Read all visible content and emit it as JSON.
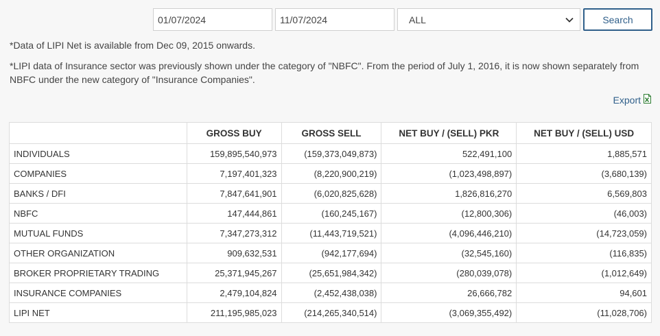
{
  "filters": {
    "from_date": "01/07/2024",
    "to_date": "11/07/2024",
    "sector": "ALL",
    "search_label": "Search"
  },
  "notes": {
    "line1": "*Data of LIPI Net is available from Dec 09, 2015 onwards.",
    "line2": "*LIPI data of Insurance sector was previously shown under the category of \"NBFC\". From the period of July 1, 2016, it is now shown separately from NBFC under the new category of \"Insurance Companies\"."
  },
  "export": {
    "label": "Export",
    "icon": "excel-icon"
  },
  "colors": {
    "accent": "#2f5f8a",
    "border": "#dcdcdc",
    "background": "#f7f7f7"
  },
  "table": {
    "headers": [
      "",
      "GROSS BUY",
      "GROSS SELL",
      "NET BUY / (SELL) PKR",
      "NET BUY / (SELL) USD"
    ],
    "rows": [
      [
        "INDIVIDUALS",
        "159,895,540,973",
        "(159,373,049,873)",
        "522,491,100",
        "1,885,571"
      ],
      [
        "COMPANIES",
        "7,197,401,323",
        "(8,220,900,219)",
        "(1,023,498,897)",
        "(3,680,139)"
      ],
      [
        "BANKS / DFI",
        "7,847,641,901",
        "(6,020,825,628)",
        "1,826,816,270",
        "6,569,803"
      ],
      [
        "NBFC",
        "147,444,861",
        "(160,245,167)",
        "(12,800,306)",
        "(46,003)"
      ],
      [
        "MUTUAL FUNDS",
        "7,347,273,312",
        "(11,443,719,521)",
        "(4,096,446,210)",
        "(14,723,059)"
      ],
      [
        "OTHER ORGANIZATION",
        "909,632,531",
        "(942,177,694)",
        "(32,545,160)",
        "(116,835)"
      ],
      [
        "BROKER PROPRIETARY TRADING",
        "25,371,945,267",
        "(25,651,984,342)",
        "(280,039,078)",
        "(1,012,649)"
      ],
      [
        "INSURANCE COMPANIES",
        "2,479,104,824",
        "(2,452,438,038)",
        "26,666,782",
        "94,601"
      ],
      [
        "LIPI NET",
        "211,195,985,023",
        "(214,265,340,514)",
        "(3,069,355,492)",
        "(11,028,706)"
      ]
    ]
  }
}
